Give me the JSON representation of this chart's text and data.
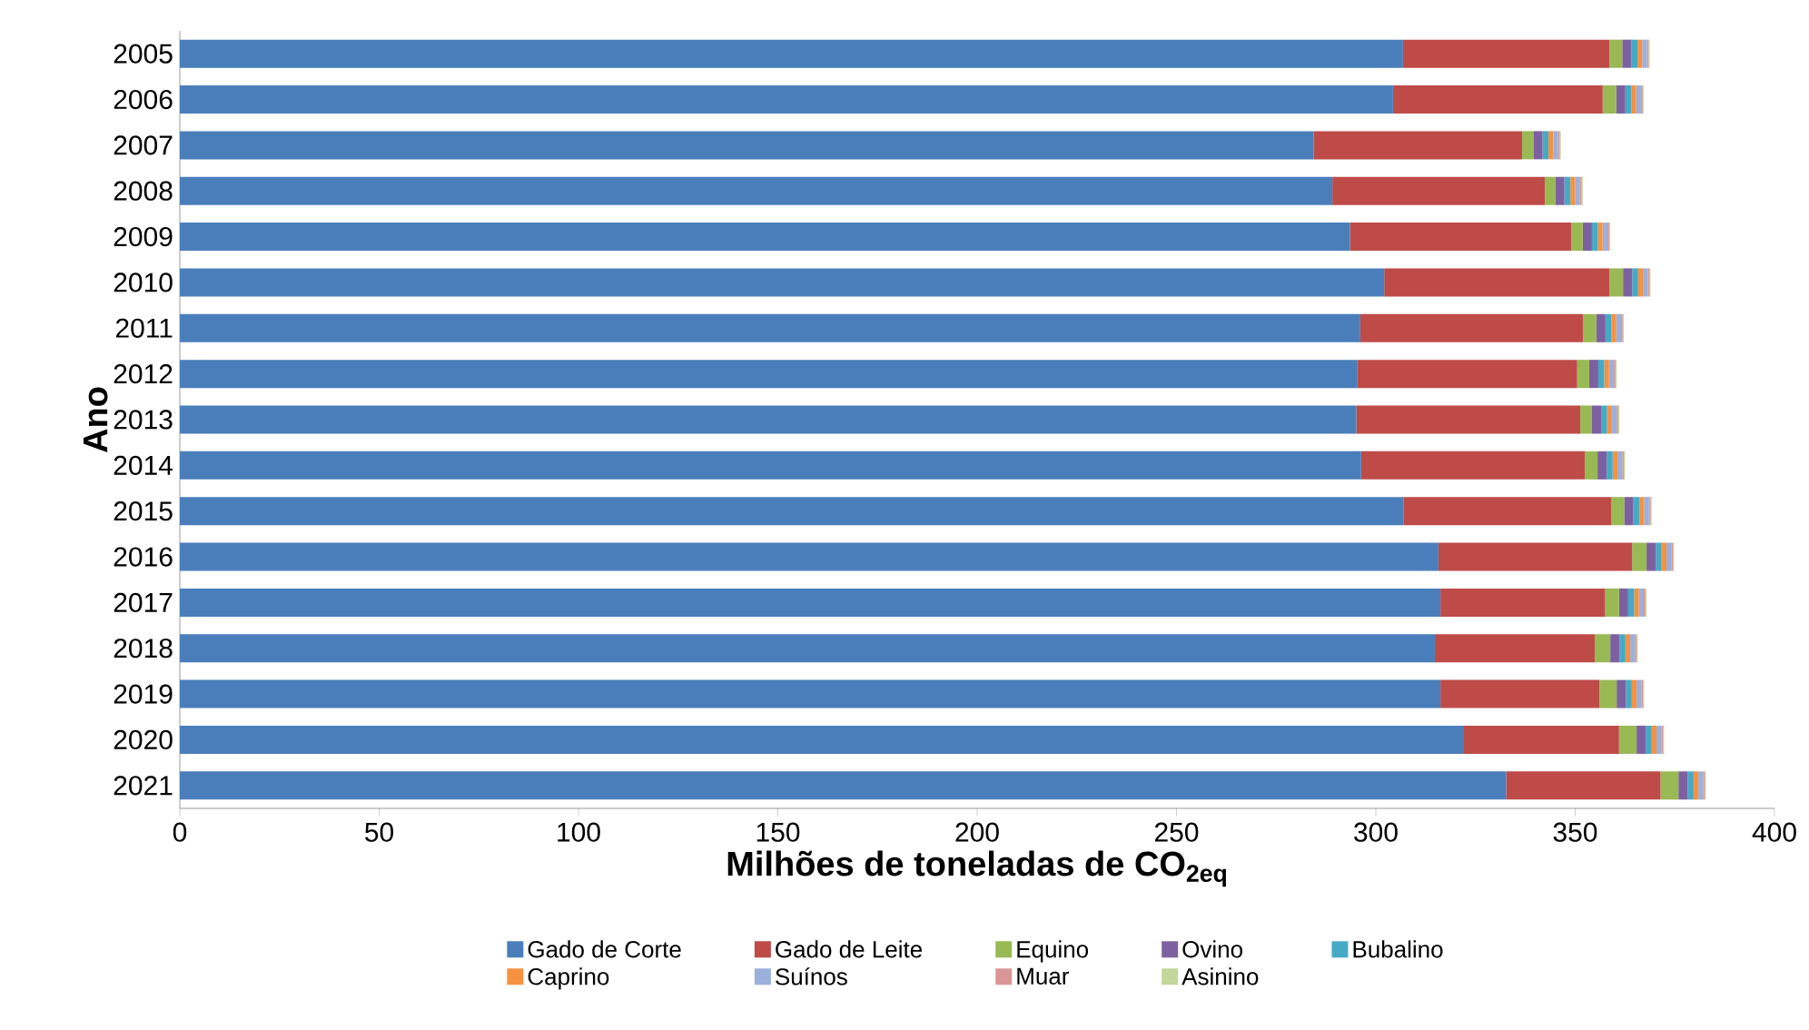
{
  "chart_data": {
    "type": "bar",
    "orientation": "horizontal",
    "stacked": true,
    "xlabel": "Milhões de toneladas de CO$_{2eq}$",
    "ylabel": "Ano",
    "categories": [
      "2005",
      "2006",
      "2007",
      "2008",
      "2009",
      "2010",
      "2011",
      "2012",
      "2013",
      "2014",
      "2015",
      "2016",
      "2017",
      "2018",
      "2019",
      "2020",
      "2021"
    ],
    "xlim": [
      0,
      400
    ],
    "xticks": [
      0,
      50,
      100,
      150,
      200,
      250,
      300,
      350,
      400
    ],
    "legend": "bottom",
    "grid": false,
    "series": [
      {
        "name": "Gado de Corte",
        "color": "#4a7ebb",
        "values": [
          306.8,
          304.3,
          284.4,
          289.1,
          293.5,
          302.1,
          296.1,
          295.4,
          295.1,
          296.3,
          306.9,
          315.7,
          316.2,
          314.8,
          316.2,
          322.1,
          332.7
        ]
      },
      {
        "name": "Gado de Leite",
        "color": "#be4b48",
        "values": [
          51.8,
          52.6,
          52.3,
          53.3,
          55.5,
          56.5,
          55.9,
          55.1,
          56.2,
          56.1,
          52.1,
          48.6,
          41.3,
          40.1,
          39.9,
          38.9,
          38.7
        ]
      },
      {
        "name": "Equino",
        "color": "#98b954",
        "values": [
          3.2,
          3.4,
          2.8,
          2.6,
          2.9,
          3.4,
          3.3,
          3.0,
          2.9,
          3.2,
          3.3,
          3.6,
          3.5,
          3.9,
          4.3,
          4.4,
          4.5
        ]
      },
      {
        "name": "Ovino",
        "color": "#7d60a0",
        "values": [
          2.3,
          2.3,
          2.3,
          2.3,
          2.3,
          2.3,
          2.3,
          2.3,
          2.3,
          2.3,
          2.3,
          2.3,
          2.3,
          2.3,
          2.3,
          2.3,
          2.3
        ]
      },
      {
        "name": "Bubalino",
        "color": "#46aac5",
        "values": [
          1.5,
          1.5,
          1.5,
          1.5,
          1.5,
          1.5,
          1.5,
          1.5,
          1.5,
          1.5,
          1.5,
          1.5,
          1.5,
          1.5,
          1.5,
          1.5,
          1.5
        ]
      },
      {
        "name": "Caprino",
        "color": "#f69240",
        "values": [
          1.2,
          1.2,
          1.2,
          1.2,
          1.2,
          1.2,
          1.2,
          1.2,
          1.2,
          1.2,
          1.2,
          1.2,
          1.2,
          1.2,
          1.2,
          1.2,
          1.2
        ]
      },
      {
        "name": "Suínos",
        "color": "#9bb0dd",
        "values": [
          1.2,
          1.2,
          1.2,
          1.2,
          1.2,
          1.2,
          1.2,
          1.2,
          1.2,
          1.2,
          1.2,
          1.2,
          1.2,
          1.2,
          1.2,
          1.2,
          1.2
        ]
      },
      {
        "name": "Muar",
        "color": "#d99694",
        "values": [
          0.4,
          0.4,
          0.4,
          0.4,
          0.4,
          0.4,
          0.4,
          0.4,
          0.4,
          0.4,
          0.4,
          0.4,
          0.4,
          0.4,
          0.4,
          0.4,
          0.4
        ]
      },
      {
        "name": "Asinino",
        "color": "#c3d69b",
        "values": [
          0.3,
          0.3,
          0.3,
          0.3,
          0.3,
          0.3,
          0.3,
          0.3,
          0.3,
          0.3,
          0.3,
          0.3,
          0.3,
          0.3,
          0.3,
          0.3,
          0.3
        ]
      }
    ]
  }
}
